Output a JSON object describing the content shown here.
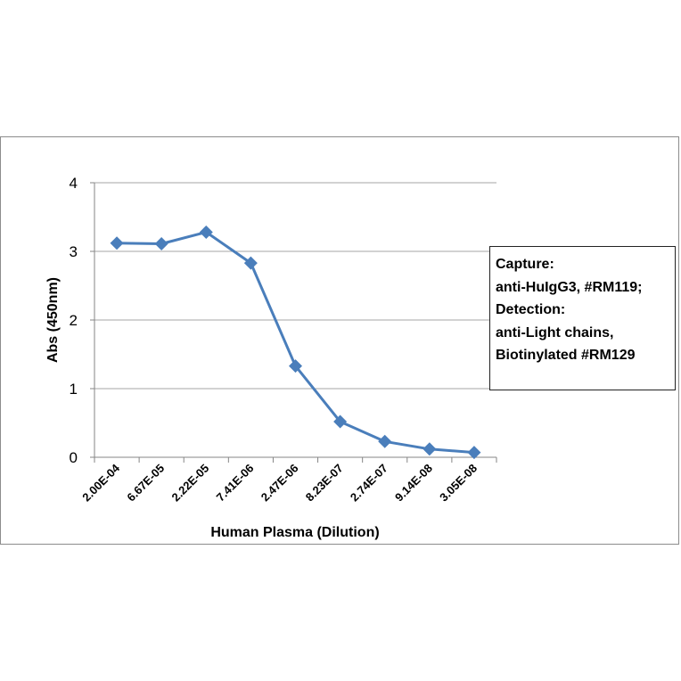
{
  "chart_data": {
    "type": "line",
    "categories": [
      "2.00E-04",
      "6.67E-05",
      "2.22E-05",
      "7.41E-06",
      "2.47E-06",
      "8.23E-07",
      "2.74E-07",
      "9.14E-08",
      "3.05E-08"
    ],
    "series": [
      {
        "values": [
          3.12,
          3.11,
          3.28,
          2.83,
          1.33,
          0.52,
          0.23,
          0.12,
          0.07
        ]
      }
    ],
    "xlabel": "Human Plasma (Dilution)",
    "ylabel": "Abs (450nm)",
    "ylim": [
      0,
      4
    ],
    "yticks": [
      0,
      1,
      2,
      3,
      4
    ],
    "grid": "horizontal",
    "legend_position": "right",
    "colors": {
      "series": "#4a7ebb",
      "grid": "#a6a6a6",
      "axis": "#868686"
    },
    "marker": "diamond-icon"
  },
  "annotation": {
    "lines": [
      "Capture:",
      "anti-HuIgG3, #RM119;",
      "Detection:",
      "anti-Light chains,",
      "Biotinylated #RM129"
    ]
  }
}
